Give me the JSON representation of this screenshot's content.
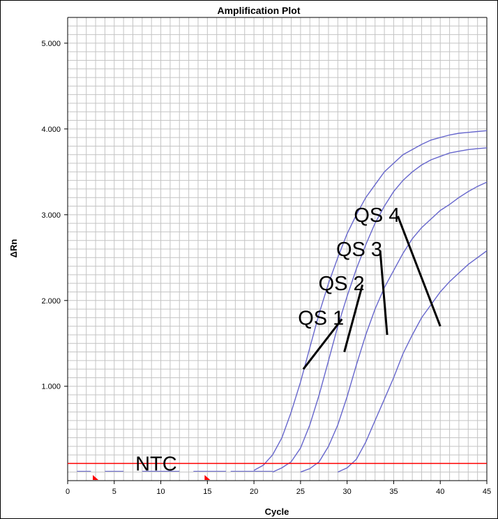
{
  "chart_data": {
    "type": "line",
    "title": "Amplification Plot",
    "xlabel": "Cycle",
    "ylabel": "ΔRn",
    "xlim": [
      0,
      45
    ],
    "ylim": [
      -0.1,
      5.3
    ],
    "xticks": [
      0,
      5,
      10,
      15,
      20,
      25,
      30,
      35,
      40,
      45
    ],
    "xtick_labels": [
      "0",
      "5",
      "10",
      "15",
      "20",
      "25",
      "30",
      "35",
      "40",
      "45"
    ],
    "yticks": [
      1,
      2,
      3,
      4,
      5
    ],
    "ytick_labels": [
      "1.000",
      "2.000",
      "3.000",
      "4.000",
      "5.000"
    ],
    "grid": true,
    "threshold": 0.1,
    "threshold_color": "#ff0000",
    "series_color": "#6666cc",
    "baseline_markers": [
      3,
      15
    ],
    "series": [
      {
        "x": [
          20,
          21,
          22,
          23,
          24,
          25,
          26,
          27,
          28,
          29,
          30,
          31,
          32,
          33,
          34,
          35,
          36,
          37,
          38,
          39,
          40,
          41,
          42,
          43,
          44,
          45
        ],
        "values": [
          0.02,
          0.08,
          0.2,
          0.4,
          0.7,
          1.05,
          1.45,
          1.85,
          2.2,
          2.5,
          2.78,
          3.0,
          3.2,
          3.35,
          3.5,
          3.6,
          3.7,
          3.76,
          3.82,
          3.87,
          3.9,
          3.93,
          3.95,
          3.96,
          3.97,
          3.98
        ]
      },
      {
        "x": [
          22,
          23,
          24,
          25,
          26,
          27,
          28,
          29,
          30,
          31,
          32,
          33,
          34,
          35,
          36,
          37,
          38,
          39,
          40,
          41,
          42,
          43,
          44,
          45
        ],
        "values": [
          0.0,
          0.05,
          0.12,
          0.28,
          0.55,
          0.9,
          1.3,
          1.7,
          2.05,
          2.37,
          2.65,
          2.9,
          3.1,
          3.27,
          3.4,
          3.5,
          3.58,
          3.64,
          3.68,
          3.72,
          3.74,
          3.76,
          3.77,
          3.78
        ]
      },
      {
        "x": [
          25,
          26,
          27,
          28,
          29,
          30,
          31,
          32,
          33,
          34,
          35,
          36,
          37,
          38,
          39,
          40,
          41,
          42,
          43,
          44,
          45
        ],
        "values": [
          0.0,
          0.04,
          0.12,
          0.3,
          0.55,
          0.88,
          1.25,
          1.6,
          1.9,
          2.15,
          2.35,
          2.55,
          2.72,
          2.85,
          2.95,
          3.05,
          3.12,
          3.2,
          3.27,
          3.33,
          3.38
        ]
      },
      {
        "x": [
          29,
          30,
          31,
          32,
          33,
          34,
          35,
          36,
          37,
          38,
          39,
          40,
          41,
          42,
          43,
          44,
          45
        ],
        "values": [
          0.0,
          0.05,
          0.15,
          0.35,
          0.6,
          0.85,
          1.1,
          1.38,
          1.6,
          1.8,
          1.95,
          2.1,
          2.22,
          2.32,
          2.42,
          2.5,
          2.58
        ]
      }
    ],
    "annotations": [
      {
        "text": "QS 4",
        "anchor": [
          40,
          1.7
        ],
        "label_at": [
          33.2,
          3.0
        ]
      },
      {
        "text": "QS 3",
        "anchor": [
          34.3,
          1.6
        ],
        "label_at": [
          31.3,
          2.6
        ]
      },
      {
        "text": "QS 2",
        "anchor": [
          29.7,
          1.4
        ],
        "label_at": [
          29.4,
          2.2
        ]
      },
      {
        "text": "QS 1",
        "anchor": [
          25.3,
          1.2
        ],
        "label_at": [
          27.2,
          1.8
        ]
      },
      {
        "text": "NTC",
        "anchor": null,
        "label_at": [
          9.5,
          0.1
        ]
      }
    ]
  }
}
